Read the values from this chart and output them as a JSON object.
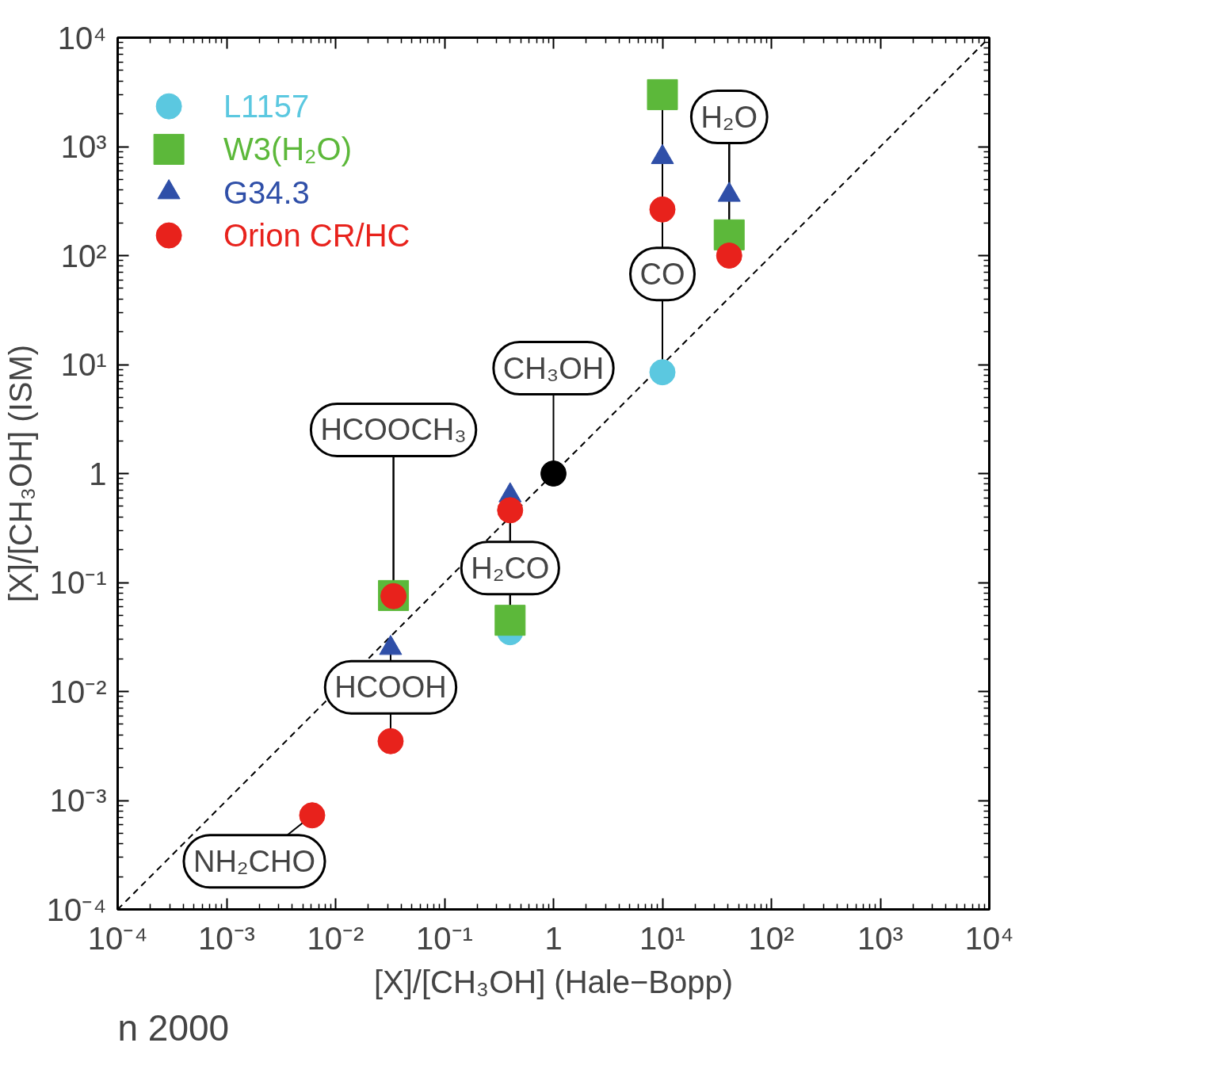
{
  "chart_data": {
    "type": "scatter",
    "log": "xy",
    "xlabel": "[X]/[CH₃OH] (Hale−Bopp)",
    "ylabel": "[X]/[CH₃OH] (ISM)",
    "xlim": [
      0.0001,
      10000
    ],
    "ylim": [
      0.0001,
      10000
    ],
    "xticks": [
      {
        "value": 0.0001,
        "label": "10⁻⁴"
      },
      {
        "value": 0.001,
        "label": "10⁻³"
      },
      {
        "value": 0.01,
        "label": "10⁻²"
      },
      {
        "value": 0.1,
        "label": "10⁻¹"
      },
      1,
      {
        "value": 10,
        "label": "10¹"
      },
      {
        "value": 100,
        "label": "10²"
      },
      {
        "value": 1000,
        "label": "10³"
      },
      {
        "value": 10000,
        "label": "10⁴"
      }
    ],
    "yticks": [
      {
        "value": 0.0001,
        "label": "10⁻⁴"
      },
      {
        "value": 0.001,
        "label": "10⁻³"
      },
      {
        "value": 0.01,
        "label": "10⁻²"
      },
      {
        "value": 0.1,
        "label": "10⁻¹"
      },
      1,
      {
        "value": 10,
        "label": "10¹"
      },
      {
        "value": 100,
        "label": "10²"
      },
      {
        "value": 1000,
        "label": "10³"
      },
      {
        "value": 10000,
        "label": "10⁴"
      }
    ],
    "grid": false,
    "legend": "top left",
    "series": [
      {
        "type": "line",
        "color": "#000000",
        "line_style": "dashed",
        "marker": "none",
        "x": [
          0.0001,
          10000
        ],
        "values": [
          0.0001,
          10000
        ]
      },
      {
        "name": "L1157",
        "color": "#5bc8e0",
        "marker": "circle",
        "x": [
          0.4,
          10
        ],
        "values": [
          0.035,
          8.5
        ]
      },
      {
        "name": "W3(H₂O)",
        "color": "#5cb83a",
        "marker": "square",
        "x": [
          0.034,
          0.4,
          10,
          41
        ],
        "values": [
          0.076,
          0.045,
          3000,
          155
        ]
      },
      {
        "name": "G34.3",
        "color": "#2f4fa8",
        "marker": "triangle",
        "x": [
          0.032,
          0.4,
          10,
          41
        ],
        "values": [
          0.025,
          0.63,
          800,
          360
        ]
      },
      {
        "name": "Orion CR/HC",
        "color": "#e8221c",
        "marker": "circle",
        "x": [
          0.0061,
          0.032,
          0.034,
          0.4,
          10,
          41
        ],
        "values": [
          0.00073,
          0.0035,
          0.075,
          0.46,
          265,
          100
        ]
      },
      {
        "color": "#000000",
        "marker": "circle",
        "x": [
          1
        ],
        "values": [
          1
        ]
      }
    ],
    "annotations": [
      "n 2000",
      {
        "text": "NH₂CHO",
        "x": 0.0061,
        "y": 0.00073
      },
      {
        "text": "HCOOH",
        "x": 0.032,
        "y": 0.0035
      },
      {
        "text": "HCOOCH₃",
        "x": 0.034,
        "y": 0.076
      },
      {
        "text": "H₂CO",
        "x": 0.4,
        "y": 0.46
      },
      {
        "text": "CH₃OH",
        "x": 1,
        "y": 1
      },
      {
        "text": "CO",
        "x": 10,
        "y": 8.5
      },
      {
        "text": "H₂O",
        "x": 41,
        "y": 100
      }
    ]
  }
}
